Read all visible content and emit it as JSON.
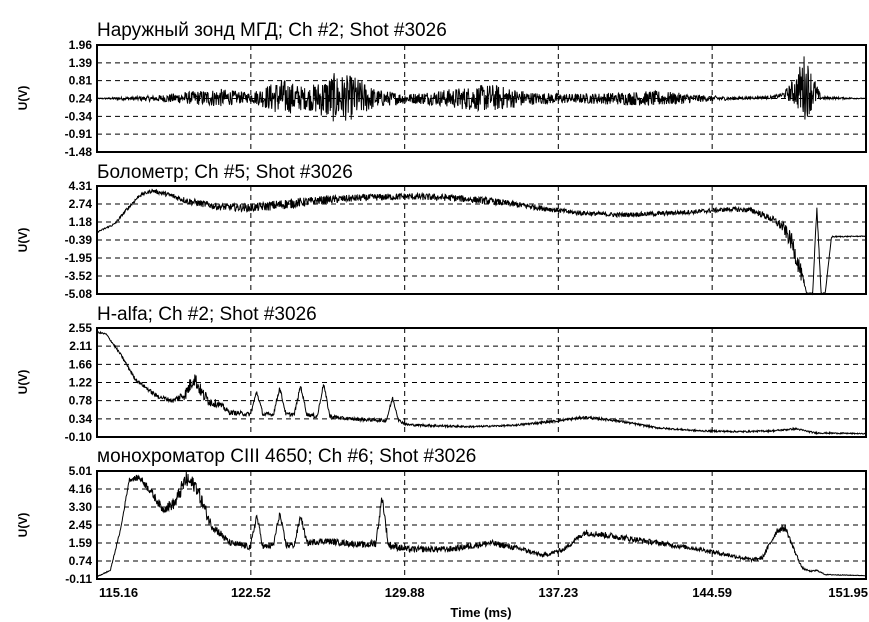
{
  "chart_data": [
    {
      "type": "line",
      "title": "Наружный зонд МГД; Ch #2; Shot #3026",
      "ylabel": "U(V)",
      "ylim": [
        -1.48,
        1.96
      ],
      "yticks": [
        "1.96",
        "1.39",
        "0.81",
        "0.24",
        "-0.34",
        "-0.91",
        "-1.48"
      ],
      "xlim": [
        115.16,
        151.95
      ],
      "grid": true,
      "series": [
        {
          "x": [
            115.16,
            118.0,
            119.5,
            121.0,
            122.5,
            124.0,
            125.2,
            126.5,
            127.5,
            128.5,
            130.0,
            131.5,
            132.5,
            134.0,
            136.0,
            138.0,
            140.0,
            142.0,
            144.0,
            145.5,
            146.5,
            147.5,
            148.0,
            148.6,
            149.0,
            149.4,
            149.8,
            151.95
          ],
          "y": [
            0.24,
            0.24,
            0.26,
            0.26,
            0.28,
            0.28,
            0.24,
            0.26,
            0.26,
            0.24,
            0.24,
            0.26,
            0.24,
            0.26,
            0.24,
            0.24,
            0.24,
            0.24,
            0.24,
            0.24,
            0.26,
            0.28,
            0.36,
            0.48,
            0.62,
            0.48,
            0.26,
            0.24
          ],
          "noise": [
            0.01,
            0.1,
            0.2,
            0.3,
            0.15,
            0.6,
            0.35,
            0.8,
            0.7,
            0.3,
            0.15,
            0.25,
            0.35,
            0.45,
            0.2,
            0.15,
            0.2,
            0.25,
            0.12,
            0.05,
            0.04,
            0.05,
            0.08,
            0.5,
            1.1,
            0.6,
            0.05,
            0.01
          ]
        }
      ]
    },
    {
      "type": "line",
      "title": "Болометр; Ch #5; Shot #3026",
      "ylabel": "U(V)",
      "ylim": [
        -5.08,
        4.31
      ],
      "yticks": [
        "4.31",
        "2.74",
        "1.18",
        "-0.39",
        "-1.95",
        "-3.52",
        "-5.08"
      ],
      "xlim": [
        115.16,
        151.95
      ],
      "grid": true,
      "series": [
        {
          "x": [
            115.16,
            116.0,
            116.6,
            117.2,
            117.8,
            118.5,
            119.5,
            121.0,
            122.5,
            124.0,
            126.0,
            128.0,
            130.0,
            132.0,
            134.0,
            136.0,
            138.0,
            140.0,
            142.0,
            144.0,
            145.5,
            146.5,
            147.5,
            148.0,
            148.4,
            148.8,
            149.1,
            149.4,
            149.6,
            149.8,
            150.0,
            150.3,
            151.95
          ],
          "y": [
            0.3,
            1.0,
            2.3,
            3.5,
            3.9,
            3.6,
            3.0,
            2.5,
            2.4,
            2.7,
            3.1,
            3.3,
            3.4,
            3.3,
            3.0,
            2.5,
            2.0,
            1.8,
            1.9,
            2.1,
            2.3,
            2.2,
            1.4,
            0.7,
            -0.6,
            -3.0,
            -5.0,
            -5.0,
            2.5,
            -5.0,
            -5.0,
            -0.1,
            -0.05
          ],
          "noise": [
            0.05,
            0.1,
            0.15,
            0.15,
            0.15,
            0.2,
            0.3,
            0.3,
            0.35,
            0.45,
            0.35,
            0.3,
            0.3,
            0.3,
            0.3,
            0.25,
            0.2,
            0.2,
            0.2,
            0.2,
            0.2,
            0.25,
            0.3,
            0.5,
            0.8,
            0.8,
            0.05,
            0.05,
            0.3,
            0.05,
            0.05,
            0.05,
            0.03
          ]
        }
      ]
    },
    {
      "type": "line",
      "title": "H-alfa; Ch #2; Shot #3026",
      "ylabel": "U(V)",
      "ylim": [
        -0.1,
        2.55
      ],
      "yticks": [
        "2.55",
        "2.11",
        "1.66",
        "1.22",
        "0.78",
        "0.34",
        "-0.10"
      ],
      "xlim": [
        115.16,
        151.95
      ],
      "grid": true,
      "series": [
        {
          "x": [
            115.16,
            115.6,
            116.3,
            117.0,
            118.0,
            118.8,
            119.4,
            119.8,
            120.2,
            120.6,
            121.0,
            121.5,
            122.5,
            122.8,
            123.1,
            123.6,
            123.9,
            124.2,
            124.6,
            124.9,
            125.2,
            125.7,
            126.0,
            126.3,
            127.0,
            128.0,
            129.0,
            129.3,
            129.6,
            130.0,
            131.0,
            133.0,
            135.0,
            137.0,
            138.5,
            140.0,
            142.0,
            144.0,
            146.0,
            147.5,
            148.6,
            149.5,
            151.95
          ],
          "y": [
            2.45,
            2.4,
            1.9,
            1.3,
            0.9,
            0.78,
            0.95,
            1.35,
            0.95,
            0.75,
            0.7,
            0.5,
            0.45,
            1.0,
            0.45,
            0.45,
            1.1,
            0.45,
            0.45,
            1.15,
            0.45,
            0.4,
            1.2,
            0.4,
            0.35,
            0.32,
            0.3,
            0.85,
            0.3,
            0.2,
            0.18,
            0.15,
            0.18,
            0.28,
            0.38,
            0.3,
            0.12,
            0.05,
            0.03,
            0.05,
            0.1,
            0.0,
            -0.02
          ],
          "noise": [
            0.02,
            0.02,
            0.03,
            0.04,
            0.05,
            0.05,
            0.15,
            0.2,
            0.15,
            0.12,
            0.08,
            0.06,
            0.05,
            0.05,
            0.05,
            0.05,
            0.05,
            0.05,
            0.05,
            0.05,
            0.05,
            0.05,
            0.05,
            0.05,
            0.04,
            0.04,
            0.04,
            0.04,
            0.04,
            0.03,
            0.03,
            0.02,
            0.02,
            0.03,
            0.03,
            0.03,
            0.02,
            0.02,
            0.02,
            0.02,
            0.02,
            0.02,
            0.01
          ]
        }
      ]
    },
    {
      "type": "line",
      "title": "монохроматор CIII 4650; Ch #6; Shot #3026",
      "ylabel": "U(V)",
      "ylim": [
        -0.11,
        5.01
      ],
      "yticks": [
        "5.01",
        "4.16",
        "3.30",
        "2.45",
        "1.59",
        "0.74",
        "-0.11"
      ],
      "xlim": [
        115.16,
        151.95
      ],
      "grid": true,
      "series": [
        {
          "x": [
            115.16,
            115.8,
            116.3,
            116.7,
            117.2,
            117.7,
            118.3,
            118.9,
            119.4,
            119.9,
            120.2,
            120.6,
            121.0,
            121.5,
            122.5,
            122.8,
            123.1,
            123.6,
            123.9,
            124.2,
            124.6,
            124.9,
            125.2,
            126.0,
            127.0,
            128.0,
            128.5,
            128.8,
            129.1,
            130.0,
            132.0,
            134.0,
            135.5,
            136.5,
            137.5,
            138.5,
            140.0,
            142.0,
            144.0,
            145.5,
            146.5,
            147.0,
            147.7,
            148.1,
            148.5,
            148.9,
            149.3,
            149.6,
            150.0,
            151.95
          ],
          "y": [
            0.0,
            0.3,
            2.3,
            4.6,
            4.7,
            4.1,
            3.2,
            3.5,
            4.6,
            4.3,
            3.5,
            2.5,
            2.1,
            1.6,
            1.4,
            2.9,
            1.4,
            1.5,
            3.0,
            1.5,
            1.5,
            2.9,
            1.6,
            1.7,
            1.6,
            1.5,
            1.6,
            3.8,
            1.5,
            1.3,
            1.3,
            1.6,
            1.3,
            1.0,
            1.3,
            2.1,
            1.9,
            1.6,
            1.3,
            1.0,
            0.8,
            0.9,
            2.2,
            2.3,
            1.3,
            0.4,
            0.25,
            0.3,
            0.1,
            0.05
          ],
          "noise": [
            0.02,
            0.03,
            0.05,
            0.1,
            0.15,
            0.2,
            0.2,
            0.3,
            0.4,
            0.35,
            0.35,
            0.25,
            0.2,
            0.15,
            0.15,
            0.15,
            0.15,
            0.15,
            0.15,
            0.15,
            0.15,
            0.15,
            0.15,
            0.15,
            0.15,
            0.15,
            0.2,
            0.2,
            0.2,
            0.15,
            0.15,
            0.15,
            0.12,
            0.1,
            0.1,
            0.15,
            0.15,
            0.12,
            0.1,
            0.1,
            0.08,
            0.1,
            0.15,
            0.15,
            0.1,
            0.05,
            0.03,
            0.03,
            0.02,
            0.01
          ]
        }
      ]
    }
  ],
  "x_axis": {
    "label": "Time (ms)",
    "ticks": [
      "115.16",
      "122.52",
      "129.88",
      "137.23",
      "144.59",
      "151.95"
    ],
    "range": [
      115.16,
      151.95
    ]
  }
}
